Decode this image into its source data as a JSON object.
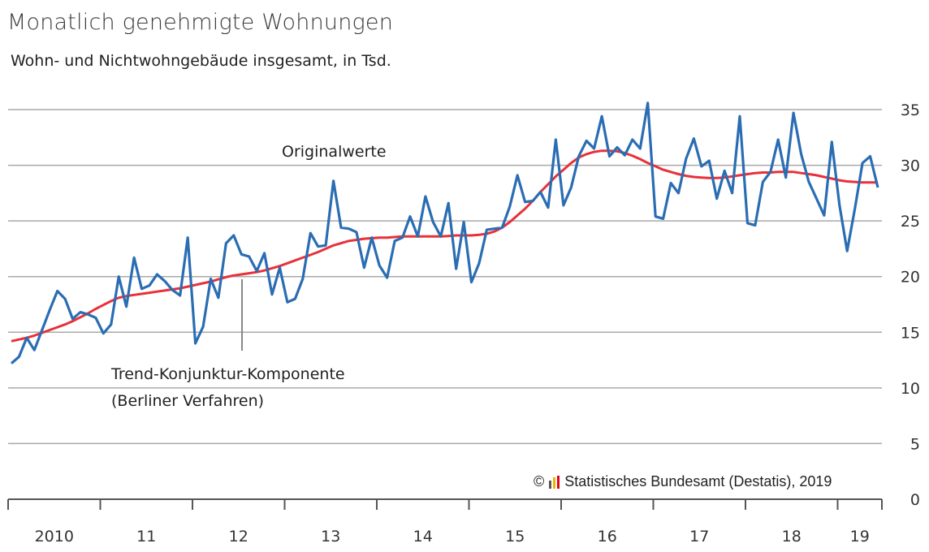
{
  "chart_data": {
    "type": "line",
    "title": "Monatlich genehmigte Wohnungen",
    "subtitle": "Wohn- und Nichtwohngebäude insgesamt, in Tsd.",
    "ylim": [
      0,
      35
    ],
    "yticks": [
      0,
      5,
      10,
      15,
      20,
      25,
      30,
      35
    ],
    "xlim": [
      2010,
      2019.9
    ],
    "xticks": [
      2010,
      2011,
      2012,
      2013,
      2014,
      2015,
      2016,
      2017,
      2018,
      2019
    ],
    "xtick_labels": [
      "2010",
      "11",
      "12",
      "13",
      "14",
      "15",
      "16",
      "17",
      "18",
      "19"
    ],
    "grid": true,
    "series": [
      {
        "name": "Originalwerte",
        "color": "#2a6db3",
        "values": [
          12.2,
          12.8,
          14.5,
          13.4,
          15.2,
          17.0,
          18.7,
          18.0,
          16.2,
          16.8,
          16.6,
          16.3,
          14.9,
          15.7,
          20.0,
          17.3,
          21.7,
          18.9,
          19.2,
          20.2,
          19.6,
          18.8,
          18.3,
          23.5,
          14.0,
          15.5,
          19.8,
          18.1,
          23.0,
          23.7,
          22.0,
          21.8,
          20.5,
          22.1,
          18.4,
          20.8,
          17.7,
          18.0,
          19.8,
          23.9,
          22.7,
          22.8,
          28.6,
          24.4,
          24.3,
          24.0,
          20.8,
          23.5,
          21.0,
          19.9,
          23.2,
          23.5,
          25.4,
          23.6,
          27.2,
          24.9,
          23.6,
          26.6,
          20.7,
          24.9,
          19.5,
          21.2,
          24.2,
          24.3,
          24.4,
          26.3,
          29.1,
          26.7,
          26.8,
          27.6,
          26.2,
          32.3,
          26.4,
          28.0,
          30.8,
          32.2,
          31.5,
          34.4,
          30.8,
          31.6,
          30.9,
          32.3,
          31.5,
          35.6,
          25.4,
          25.2,
          28.4,
          27.5,
          30.6,
          32.4,
          29.9,
          30.4,
          27.0,
          29.5,
          27.5,
          34.4,
          24.8,
          24.6,
          28.5,
          29.4,
          32.3,
          28.9,
          34.7,
          31.0,
          28.5,
          27.0,
          25.5,
          32.1,
          26.4,
          22.3,
          26.1,
          30.2,
          30.8,
          28.0
        ],
        "annotation": "Originalwerte"
      },
      {
        "name": "Trend-Konjunktur-Komponente (Berliner Verfahren)",
        "color": "#e8303a",
        "values": [
          14.2,
          14.35,
          14.5,
          14.7,
          14.95,
          15.2,
          15.45,
          15.7,
          16.0,
          16.35,
          16.7,
          17.1,
          17.45,
          17.8,
          18.1,
          18.25,
          18.35,
          18.45,
          18.55,
          18.65,
          18.75,
          18.85,
          18.95,
          19.1,
          19.25,
          19.4,
          19.55,
          19.75,
          19.95,
          20.1,
          20.2,
          20.3,
          20.4,
          20.55,
          20.75,
          20.95,
          21.2,
          21.45,
          21.7,
          21.95,
          22.2,
          22.5,
          22.8,
          23.0,
          23.2,
          23.3,
          23.4,
          23.45,
          23.5,
          23.5,
          23.55,
          23.6,
          23.6,
          23.6,
          23.6,
          23.6,
          23.6,
          23.65,
          23.7,
          23.7,
          23.7,
          23.75,
          23.85,
          24.05,
          24.4,
          24.9,
          25.5,
          26.1,
          26.8,
          27.6,
          28.3,
          29.0,
          29.6,
          30.2,
          30.7,
          31.0,
          31.2,
          31.3,
          31.3,
          31.25,
          31.1,
          30.85,
          30.55,
          30.2,
          29.9,
          29.6,
          29.4,
          29.2,
          29.05,
          28.95,
          28.9,
          28.85,
          28.85,
          28.9,
          29.0,
          29.1,
          29.2,
          29.3,
          29.35,
          29.35,
          29.4,
          29.4,
          29.4,
          29.3,
          29.2,
          29.1,
          28.95,
          28.8,
          28.65,
          28.55,
          28.5,
          28.45,
          28.45,
          28.45
        ],
        "annotation": "Trend-Konjunktur-Komponente",
        "annotation_line2": "(Berliner Verfahren)"
      }
    ]
  },
  "labels": {
    "title": "Monatlich genehmigte Wohnungen",
    "subtitle": "Wohn- und Nichtwohngebäude insgesamt, in Tsd.",
    "original_label": "Originalwerte",
    "trend_label_1": "Trend-Konjunktur-Komponente",
    "trend_label_2": "(Berliner Verfahren)",
    "copyright": "© ",
    "source": "Statistisches Bundesamt (Destatis), 2019"
  },
  "colors": {
    "grid": "#a9a9a9",
    "axis": "#555555",
    "logo": [
      "#555555",
      "#f0b400",
      "#e2001a"
    ]
  }
}
